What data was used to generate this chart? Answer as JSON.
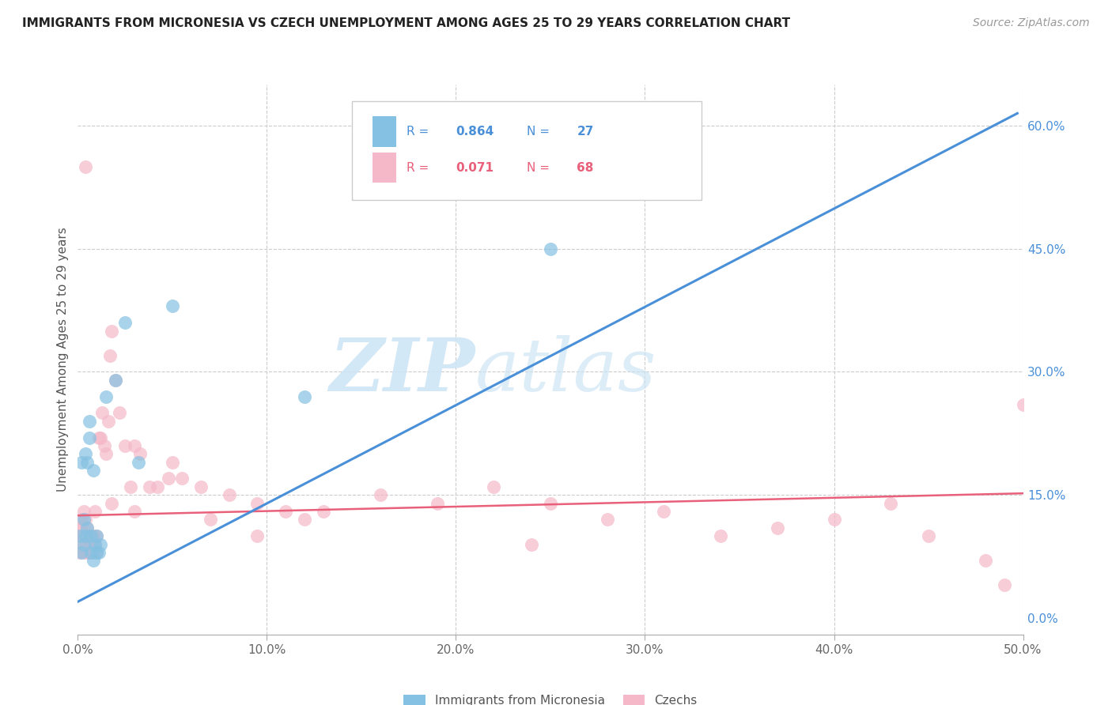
{
  "title": "IMMIGRANTS FROM MICRONESIA VS CZECH UNEMPLOYMENT AMONG AGES 25 TO 29 YEARS CORRELATION CHART",
  "source": "Source: ZipAtlas.com",
  "ylabel": "Unemployment Among Ages 25 to 29 years",
  "xlim": [
    0.0,
    0.5
  ],
  "ylim": [
    -0.02,
    0.65
  ],
  "xtick_vals": [
    0.0,
    0.1,
    0.2,
    0.3,
    0.4,
    0.5
  ],
  "xtick_labels": [
    "0.0%",
    "10.0%",
    "20.0%",
    "30.0%",
    "40.0%",
    "50.0%"
  ],
  "ytick_vals": [
    0.0,
    0.15,
    0.3,
    0.45,
    0.6
  ],
  "ytick_labels": [
    "0.0%",
    "15.0%",
    "30.0%",
    "45.0%",
    "60.0%"
  ],
  "blue_color": "#85c1e2",
  "pink_color": "#f5b8c8",
  "blue_line_color": "#4a90d9",
  "pink_line_color": "#e8607a",
  "legend_label_blue": "Immigrants from Micronesia",
  "legend_label_pink": "Czechs",
  "blue_R": "0.864",
  "blue_N": "27",
  "pink_R": "0.071",
  "pink_N": "68",
  "watermark_zip": "ZIP",
  "watermark_atlas": "atlas",
  "blue_scatter_x": [
    0.001,
    0.002,
    0.002,
    0.003,
    0.003,
    0.004,
    0.004,
    0.005,
    0.005,
    0.006,
    0.006,
    0.007,
    0.007,
    0.008,
    0.008,
    0.009,
    0.01,
    0.01,
    0.011,
    0.012,
    0.015,
    0.02,
    0.025,
    0.032,
    0.05,
    0.12,
    0.25
  ],
  "blue_scatter_y": [
    0.1,
    0.08,
    0.19,
    0.09,
    0.12,
    0.1,
    0.2,
    0.11,
    0.19,
    0.22,
    0.24,
    0.1,
    0.08,
    0.07,
    0.18,
    0.09,
    0.08,
    0.1,
    0.08,
    0.09,
    0.27,
    0.29,
    0.36,
    0.19,
    0.38,
    0.27,
    0.45
  ],
  "pink_scatter_x": [
    0.001,
    0.001,
    0.001,
    0.002,
    0.002,
    0.002,
    0.003,
    0.003,
    0.003,
    0.004,
    0.004,
    0.004,
    0.005,
    0.005,
    0.006,
    0.006,
    0.007,
    0.007,
    0.008,
    0.008,
    0.009,
    0.009,
    0.01,
    0.01,
    0.011,
    0.012,
    0.013,
    0.014,
    0.015,
    0.016,
    0.017,
    0.018,
    0.02,
    0.022,
    0.025,
    0.028,
    0.03,
    0.033,
    0.038,
    0.042,
    0.048,
    0.055,
    0.065,
    0.08,
    0.095,
    0.11,
    0.13,
    0.16,
    0.19,
    0.22,
    0.25,
    0.28,
    0.31,
    0.34,
    0.37,
    0.4,
    0.43,
    0.45,
    0.48,
    0.5,
    0.018,
    0.03,
    0.05,
    0.07,
    0.095,
    0.12,
    0.24,
    0.49
  ],
  "pink_scatter_y": [
    0.08,
    0.1,
    0.11,
    0.09,
    0.11,
    0.12,
    0.08,
    0.1,
    0.13,
    0.09,
    0.12,
    0.55,
    0.08,
    0.11,
    0.08,
    0.09,
    0.09,
    0.1,
    0.08,
    0.1,
    0.09,
    0.13,
    0.08,
    0.1,
    0.22,
    0.22,
    0.25,
    0.21,
    0.2,
    0.24,
    0.32,
    0.35,
    0.29,
    0.25,
    0.21,
    0.16,
    0.21,
    0.2,
    0.16,
    0.16,
    0.17,
    0.17,
    0.16,
    0.15,
    0.14,
    0.13,
    0.13,
    0.15,
    0.14,
    0.16,
    0.14,
    0.12,
    0.13,
    0.1,
    0.11,
    0.12,
    0.14,
    0.1,
    0.07,
    0.26,
    0.14,
    0.13,
    0.19,
    0.12,
    0.1,
    0.12,
    0.09,
    0.04
  ],
  "blue_line_x": [
    0.0,
    0.497
  ],
  "blue_line_y": [
    0.02,
    0.615
  ],
  "pink_line_x": [
    0.0,
    0.5
  ],
  "pink_line_y": [
    0.125,
    0.152
  ]
}
